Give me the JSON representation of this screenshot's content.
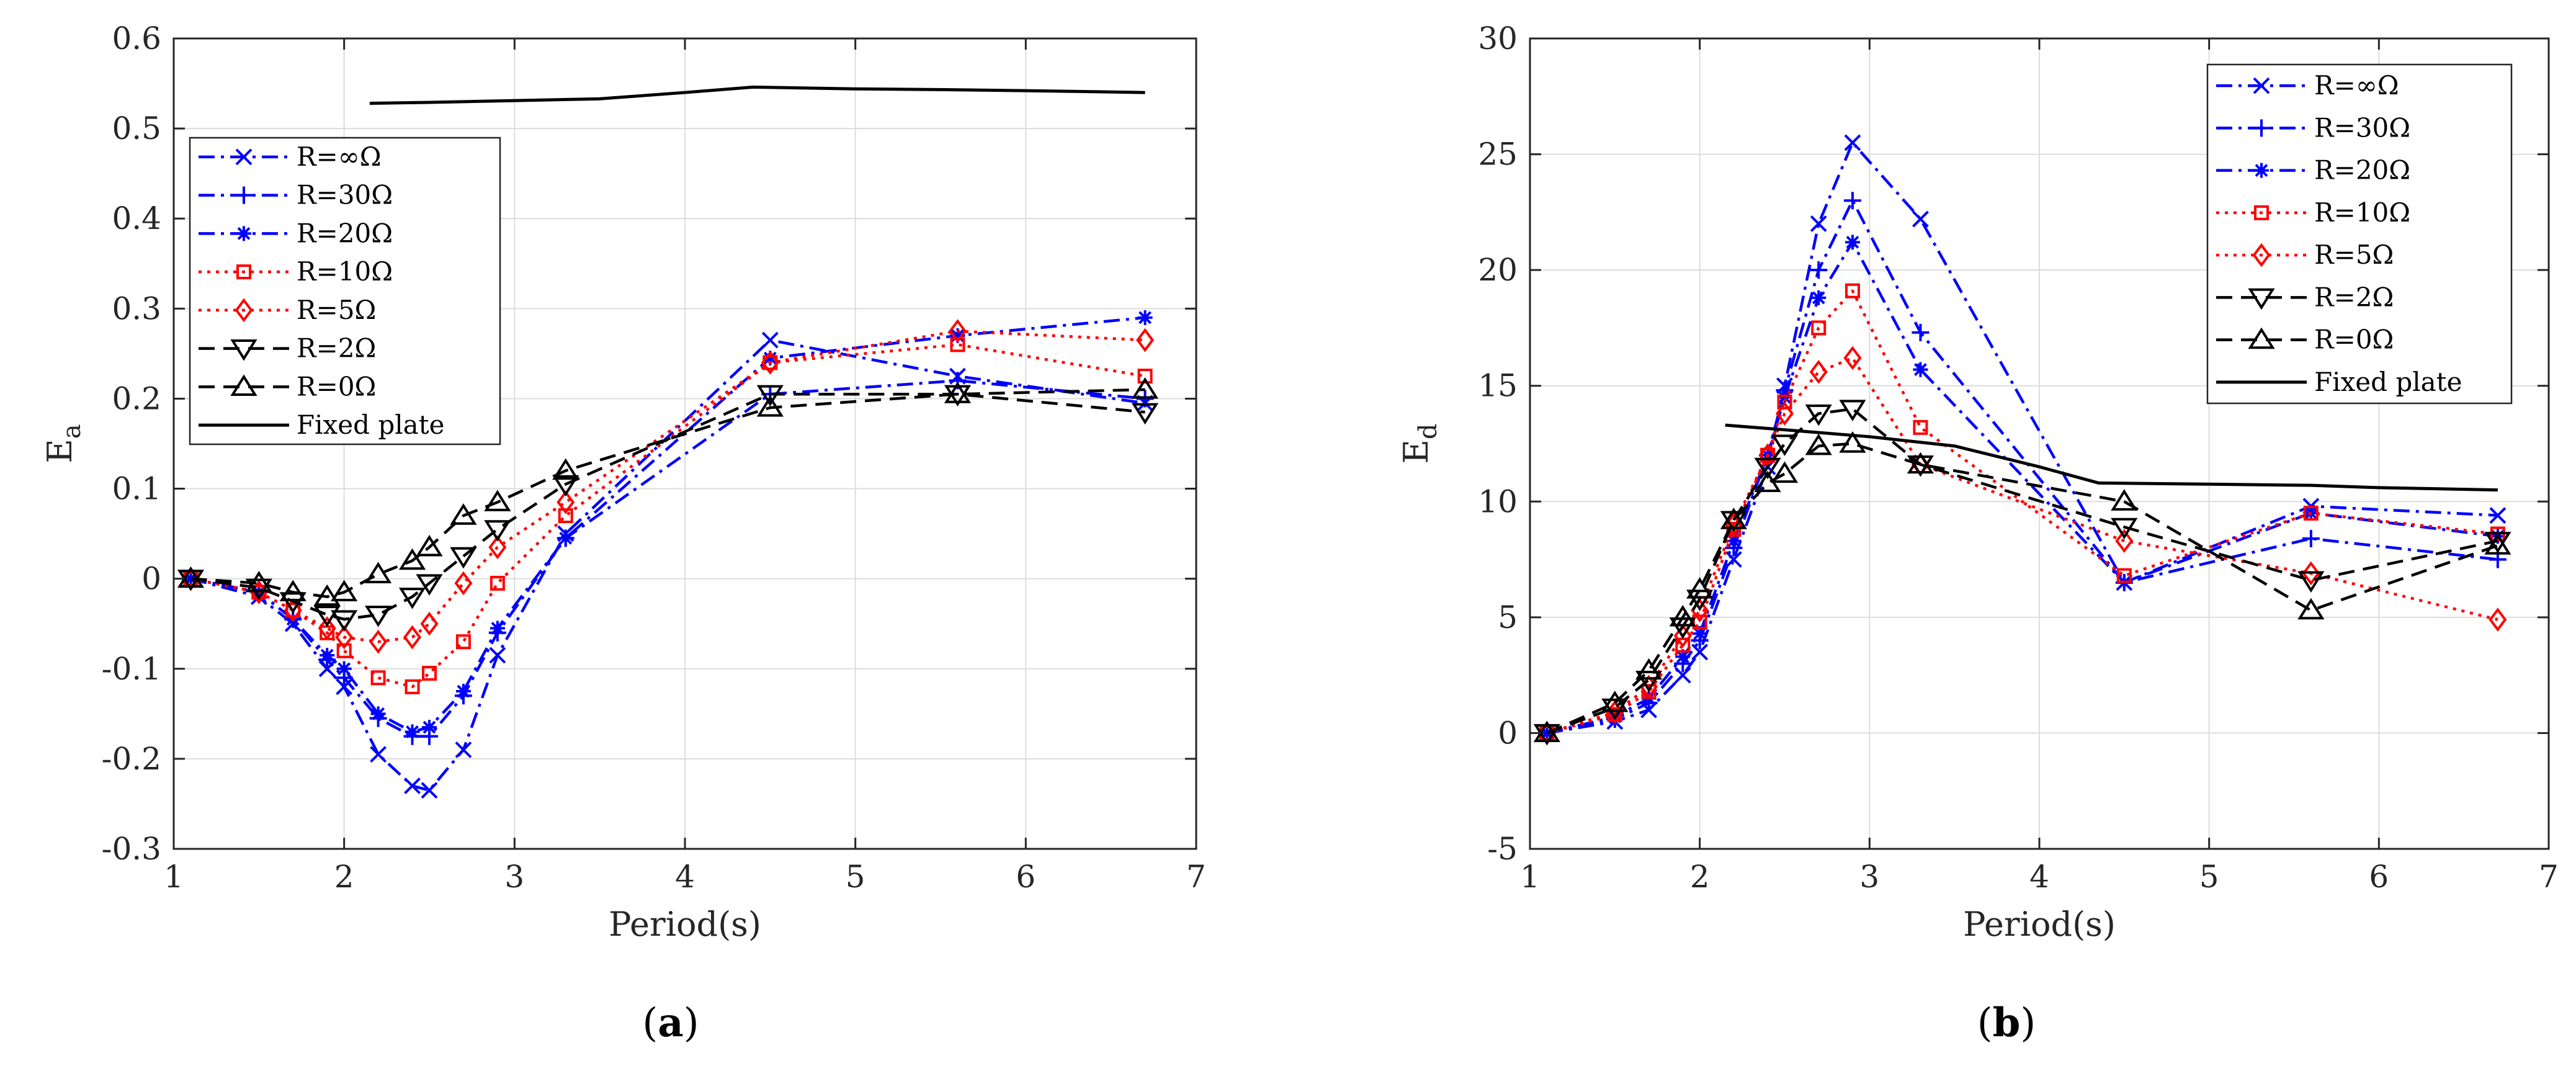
{
  "figure": {
    "captions": [
      {
        "open": "(",
        "letter": "a",
        "close": ")"
      },
      {
        "open": "(",
        "letter": "b",
        "close": ")"
      }
    ]
  },
  "chart_data": [
    {
      "type": "line",
      "title": "",
      "xlabel": "Period(s)",
      "ylabel_main": "E",
      "ylabel_sub": "a",
      "xlim": [
        1,
        7
      ],
      "ylim": [
        -0.3,
        0.6
      ],
      "xticks": [
        1,
        2,
        3,
        4,
        5,
        6,
        7
      ],
      "xtick_labels": [
        "1",
        "2",
        "3",
        "4",
        "5",
        "6",
        "7"
      ],
      "yticks": [
        -0.3,
        -0.2,
        -0.1,
        0,
        0.1,
        0.2,
        0.3,
        0.4,
        0.5,
        0.6
      ],
      "ytick_labels": [
        "-0.3",
        "-0.2",
        "-0.1",
        "0",
        "0.1",
        "0.2",
        "0.3",
        "0.4",
        "0.5",
        "0.6"
      ],
      "grid": true,
      "legend_position": "upper-left",
      "series": [
        {
          "name": "R=∞Ω",
          "color": "#0000ff",
          "dash": "dashdot",
          "marker": "x",
          "x": [
            1.1,
            1.5,
            1.7,
            1.9,
            2.0,
            2.2,
            2.4,
            2.5,
            2.7,
            2.9,
            3.3,
            4.5,
            5.6,
            6.7
          ],
          "y": [
            0,
            -0.02,
            -0.05,
            -0.1,
            -0.12,
            -0.195,
            -0.23,
            -0.235,
            -0.19,
            -0.085,
            0.05,
            0.265,
            0.225,
            0.195
          ]
        },
        {
          "name": "R=30Ω",
          "color": "#0000ff",
          "dash": "dashdot",
          "marker": "+",
          "x": [
            1.1,
            1.5,
            1.7,
            1.9,
            2.0,
            2.2,
            2.4,
            2.5,
            2.7,
            2.9,
            3.3,
            4.5,
            5.6,
            6.7
          ],
          "y": [
            0,
            -0.015,
            -0.045,
            -0.09,
            -0.11,
            -0.155,
            -0.175,
            -0.175,
            -0.13,
            -0.06,
            0.045,
            0.205,
            0.22,
            0.2
          ]
        },
        {
          "name": "R=20Ω",
          "color": "#0000ff",
          "dash": "dashdot",
          "marker": "star",
          "x": [
            1.1,
            1.5,
            1.7,
            1.9,
            2.0,
            2.2,
            2.4,
            2.5,
            2.7,
            2.9,
            3.3,
            4.5,
            5.6,
            6.7
          ],
          "y": [
            0,
            -0.015,
            -0.045,
            -0.085,
            -0.1,
            -0.15,
            -0.17,
            -0.165,
            -0.125,
            -0.055,
            0.045,
            0.245,
            0.27,
            0.29
          ]
        },
        {
          "name": "R=10Ω",
          "color": "#ff0000",
          "dash": "dotted",
          "marker": "square",
          "x": [
            1.1,
            1.5,
            1.7,
            1.9,
            2.0,
            2.2,
            2.4,
            2.5,
            2.7,
            2.9,
            3.3,
            4.5,
            5.6,
            6.7
          ],
          "y": [
            0,
            -0.015,
            -0.035,
            -0.06,
            -0.08,
            -0.11,
            -0.12,
            -0.105,
            -0.07,
            -0.005,
            0.07,
            0.24,
            0.26,
            0.225
          ]
        },
        {
          "name": "R=5Ω",
          "color": "#ff0000",
          "dash": "dotted",
          "marker": "diamond",
          "x": [
            1.1,
            1.5,
            1.7,
            1.9,
            2.0,
            2.2,
            2.4,
            2.5,
            2.7,
            2.9,
            3.3,
            4.5,
            5.6,
            6.7
          ],
          "y": [
            0,
            -0.015,
            -0.035,
            -0.055,
            -0.065,
            -0.07,
            -0.065,
            -0.05,
            -0.005,
            0.035,
            0.085,
            0.24,
            0.275,
            0.265
          ]
        },
        {
          "name": "R=2Ω",
          "color": "#000000",
          "dash": "dashed",
          "marker": "triangle-down",
          "x": [
            1.1,
            1.5,
            1.7,
            1.9,
            2.0,
            2.2,
            2.4,
            2.5,
            2.7,
            2.9,
            3.3,
            4.5,
            5.6,
            6.7
          ],
          "y": [
            0,
            -0.01,
            -0.025,
            -0.04,
            -0.045,
            -0.04,
            -0.02,
            -0.005,
            0.025,
            0.055,
            0.105,
            0.205,
            0.205,
            0.185
          ]
        },
        {
          "name": "R=0Ω",
          "color": "#000000",
          "dash": "dashed",
          "marker": "triangle-up",
          "x": [
            1.1,
            1.5,
            1.7,
            1.9,
            2.0,
            2.2,
            2.4,
            2.5,
            2.7,
            2.9,
            3.3,
            4.5,
            5.6,
            6.7
          ],
          "y": [
            0,
            -0.005,
            -0.015,
            -0.02,
            -0.015,
            0.005,
            0.02,
            0.035,
            0.07,
            0.085,
            0.12,
            0.19,
            0.205,
            0.21
          ]
        },
        {
          "name": "Fixed plate",
          "color": "#000000",
          "dash": "solid",
          "marker": "none",
          "x": [
            2.15,
            2.5,
            3.0,
            3.5,
            4.0,
            4.4,
            5.0,
            5.6,
            6.0,
            6.7
          ],
          "y": [
            0.528,
            0.529,
            0.531,
            0.533,
            0.54,
            0.546,
            0.544,
            0.543,
            0.542,
            0.54
          ]
        }
      ]
    },
    {
      "type": "line",
      "title": "",
      "xlabel": "Period(s)",
      "ylabel_main": "E",
      "ylabel_sub": "d",
      "xlim": [
        1,
        7
      ],
      "ylim": [
        -5,
        30
      ],
      "xticks": [
        1,
        2,
        3,
        4,
        5,
        6,
        7
      ],
      "xtick_labels": [
        "1",
        "2",
        "3",
        "4",
        "5",
        "6",
        "7"
      ],
      "yticks": [
        -5,
        0,
        5,
        10,
        15,
        20,
        25,
        30
      ],
      "ytick_labels": [
        "-5",
        "0",
        "5",
        "10",
        "15",
        "20",
        "25",
        "30"
      ],
      "grid": true,
      "legend_position": "upper-right",
      "series": [
        {
          "name": "R=∞Ω",
          "color": "#0000ff",
          "dash": "dashdot",
          "marker": "x",
          "x": [
            1.1,
            1.5,
            1.7,
            1.9,
            2.0,
            2.2,
            2.4,
            2.5,
            2.7,
            2.9,
            3.3,
            4.5,
            5.6,
            6.7
          ],
          "y": [
            0,
            0.5,
            1.0,
            2.5,
            3.5,
            7.5,
            11.5,
            15,
            22,
            25.5,
            22.2,
            6.5,
            9.8,
            9.4
          ]
        },
        {
          "name": "R=30Ω",
          "color": "#0000ff",
          "dash": "dashdot",
          "marker": "+",
          "x": [
            1.1,
            1.5,
            1.7,
            1.9,
            2.0,
            2.2,
            2.4,
            2.5,
            2.7,
            2.9,
            3.3,
            4.5,
            5.6,
            6.7
          ],
          "y": [
            0,
            0.6,
            1.3,
            3.0,
            4.0,
            8.0,
            12,
            14.8,
            20,
            23,
            17.3,
            6.5,
            8.4,
            7.5
          ]
        },
        {
          "name": "R=20Ω",
          "color": "#0000ff",
          "dash": "dashdot",
          "marker": "star",
          "x": [
            1.1,
            1.5,
            1.7,
            1.9,
            2.0,
            2.2,
            2.4,
            2.5,
            2.7,
            2.9,
            3.3,
            4.5,
            5.6,
            6.7
          ],
          "y": [
            0,
            0.7,
            1.5,
            3.3,
            4.3,
            8.3,
            12,
            14.5,
            18.8,
            21.2,
            15.7,
            6.5,
            9.5,
            8.5
          ]
        },
        {
          "name": "R=10Ω",
          "color": "#ff0000",
          "dash": "dotted",
          "marker": "square",
          "x": [
            1.1,
            1.5,
            1.7,
            1.9,
            2.0,
            2.2,
            2.4,
            2.5,
            2.7,
            2.9,
            3.3,
            4.5,
            5.6,
            6.7
          ],
          "y": [
            0,
            0.8,
            1.8,
            3.8,
            4.8,
            8.8,
            12,
            14.3,
            17.5,
            19.1,
            13.2,
            6.8,
            9.5,
            8.6
          ]
        },
        {
          "name": "R=5Ω",
          "color": "#ff0000",
          "dash": "dotted",
          "marker": "diamond",
          "x": [
            1.1,
            1.5,
            1.7,
            1.9,
            2.0,
            2.2,
            2.4,
            2.5,
            2.7,
            2.9,
            3.3,
            4.5,
            5.6,
            6.7
          ],
          "y": [
            0,
            0.9,
            2.0,
            4.2,
            5.3,
            9.0,
            12,
            13.8,
            15.6,
            16.2,
            11.6,
            8.3,
            6.9,
            4.9
          ]
        },
        {
          "name": "R=2Ω",
          "color": "#000000",
          "dash": "dashed",
          "marker": "triangle-down",
          "x": [
            1.1,
            1.5,
            1.7,
            1.9,
            2.0,
            2.2,
            2.4,
            2.5,
            2.7,
            2.9,
            3.3,
            4.5,
            5.6,
            6.7
          ],
          "y": [
            0,
            1.1,
            2.3,
            4.6,
            5.8,
            9.2,
            11.5,
            12.5,
            13.8,
            14.0,
            11.6,
            8.9,
            6.6,
            8.3
          ]
        },
        {
          "name": "R=0Ω",
          "color": "#000000",
          "dash": "dashed",
          "marker": "triangle-up",
          "x": [
            1.1,
            1.5,
            1.7,
            1.9,
            2.0,
            2.2,
            2.4,
            2.5,
            2.7,
            2.9,
            3.3,
            4.5,
            5.6,
            6.7
          ],
          "y": [
            0,
            1.3,
            2.7,
            5.0,
            6.2,
            9.2,
            10.8,
            11.2,
            12.4,
            12.5,
            11.6,
            10.0,
            5.3,
            8.1
          ]
        },
        {
          "name": "Fixed plate",
          "color": "#000000",
          "dash": "solid",
          "marker": "none",
          "x": [
            2.15,
            2.5,
            3.0,
            3.5,
            4.0,
            4.35,
            5.0,
            5.6,
            6.0,
            6.7
          ],
          "y": [
            13.3,
            13.1,
            12.8,
            12.4,
            11.5,
            10.8,
            10.75,
            10.7,
            10.6,
            10.5
          ]
        }
      ]
    }
  ]
}
